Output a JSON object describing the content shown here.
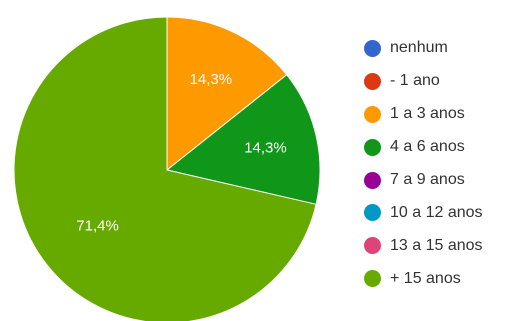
{
  "chart_data": {
    "type": "pie",
    "title": "",
    "slices": [
      {
        "label": "nenhum",
        "value": 0,
        "color": "#3366cc",
        "data_label": ""
      },
      {
        "label": "- 1 ano",
        "value": 0,
        "color": "#dc3912",
        "data_label": ""
      },
      {
        "label": "1 a 3 anos",
        "value": 14.3,
        "color": "#ff9900",
        "data_label": "14,3%"
      },
      {
        "label": "4 a 6 anos",
        "value": 14.3,
        "color": "#109618",
        "data_label": "14,3%"
      },
      {
        "label": "7 a 9 anos",
        "value": 0,
        "color": "#990099",
        "data_label": ""
      },
      {
        "label": "10 a 12 anos",
        "value": 0,
        "color": "#0099c6",
        "data_label": ""
      },
      {
        "label": "13 a 15 anos",
        "value": 0,
        "color": "#dd4477",
        "data_label": ""
      },
      {
        "label": "+ 15 anos",
        "value": 71.4,
        "color": "#66aa00",
        "data_label": "71,4%"
      }
    ],
    "legend_position": "right"
  }
}
